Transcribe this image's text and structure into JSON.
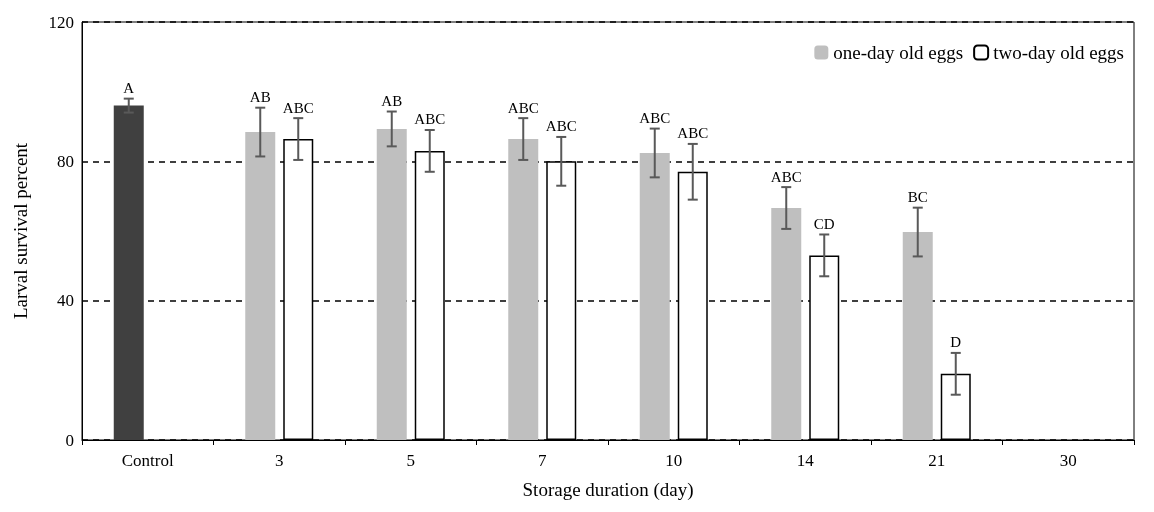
{
  "chart_data": {
    "type": "bar",
    "xlabel": "Storage duration (day)",
    "ylabel": "Larval survival percent",
    "categories": [
      "Control",
      "3",
      "5",
      "7",
      "10",
      "14",
      "21",
      "30"
    ],
    "series": [
      {
        "name": "one-day old eggs",
        "color": "#bfbfbf",
        "colors": [
          "#404040",
          "#bfbfbf",
          "#bfbfbf",
          "#bfbfbf",
          "#bfbfbf",
          "#bfbfbf",
          "#bfbfbf",
          null
        ],
        "values": [
          96,
          88.4,
          89.3,
          86.4,
          82.4,
          66.6,
          59.7,
          null
        ],
        "errors": [
          2,
          7,
          5,
          6,
          7,
          6,
          7,
          null
        ],
        "value_labels": [
          "A",
          "AB",
          "AB",
          "ABC",
          "ABC",
          "ABC",
          "BC",
          null
        ]
      },
      {
        "name": "two-day old eggs",
        "color": "#ffffff",
        "values": [
          null,
          86.4,
          83,
          80,
          77,
          53,
          19,
          null
        ],
        "errors": [
          null,
          6,
          6,
          7,
          8,
          6,
          6,
          null
        ],
        "value_labels": [
          null,
          "ABC",
          "ABC",
          "ABC",
          "ABC",
          "CD",
          "D",
          null
        ]
      }
    ],
    "ylim": [
      0,
      120
    ],
    "yticks": [
      0,
      40,
      80,
      120
    ],
    "grid": "y",
    "legend": "top right"
  }
}
